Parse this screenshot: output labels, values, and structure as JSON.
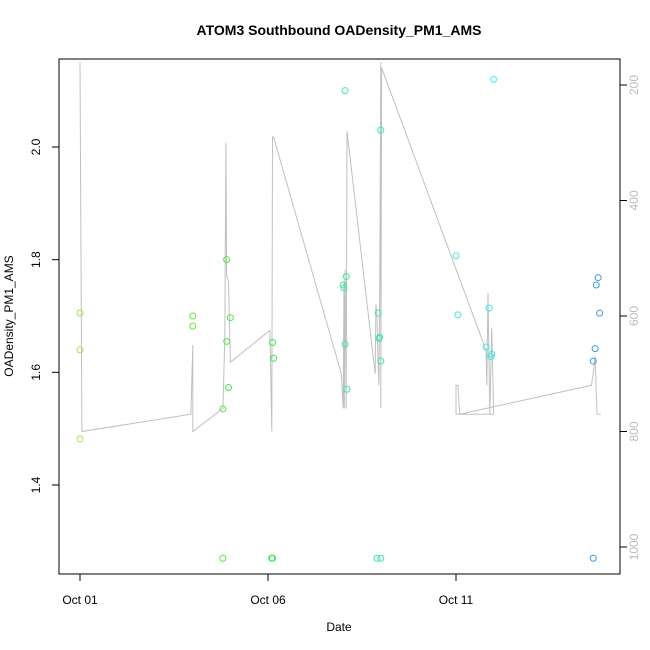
{
  "chart_data": {
    "type": "scatter",
    "title": "ATOM3 Southbound OADensity_PM1_AMS",
    "xlabel": "Date",
    "ylabel": "OADensity_PM1_AMS",
    "x_ticks": [
      {
        "label": "Oct 01",
        "day": 1
      },
      {
        "label": "Oct 06",
        "day": 6
      },
      {
        "label": "Oct 11",
        "day": 11
      }
    ],
    "xlim": [
      0,
      15.4
    ],
    "ylim": [
      1.2,
      2.25
    ],
    "y_ticks": [
      "1.4",
      "1.6",
      "1.8",
      "2.0"
    ],
    "y2_ticks": [
      "200",
      "400",
      "600",
      "800",
      "1000"
    ],
    "y2lim": [
      1060,
      170
    ],
    "points": [
      {
        "x": 1.0,
        "y": 1.705,
        "color": "#9be83a"
      },
      {
        "x": 1.0,
        "y": 1.64,
        "color": "#9be83a"
      },
      {
        "x": 1.0,
        "y": 1.482,
        "color": "#9be83a"
      },
      {
        "x": 4.0,
        "y": 1.7,
        "color": "#6ae63c"
      },
      {
        "x": 4.0,
        "y": 1.682,
        "color": "#6ae63c"
      },
      {
        "x": 4.8,
        "y": 1.27,
        "color": "#55e640"
      },
      {
        "x": 4.8,
        "y": 1.535,
        "color": "#55e640"
      },
      {
        "x": 4.9,
        "y": 1.8,
        "color": "#4be848"
      },
      {
        "x": 4.9,
        "y": 1.655,
        "color": "#4be848"
      },
      {
        "x": 4.95,
        "y": 1.573,
        "color": "#4be848"
      },
      {
        "x": 5.0,
        "y": 1.697,
        "color": "#4be848"
      },
      {
        "x": 6.1,
        "y": 1.27,
        "color": "#3ee655"
      },
      {
        "x": 6.12,
        "y": 1.27,
        "color": "#3ee655"
      },
      {
        "x": 6.12,
        "y": 1.653,
        "color": "#3ee655"
      },
      {
        "x": 6.15,
        "y": 1.625,
        "color": "#3ee655"
      },
      {
        "x": 8.0,
        "y": 1.755,
        "color": "#3ee89e"
      },
      {
        "x": 8.02,
        "y": 1.75,
        "color": "#3ee89e"
      },
      {
        "x": 8.05,
        "y": 1.65,
        "color": "#3ee89e"
      },
      {
        "x": 8.08,
        "y": 1.77,
        "color": "#3ee89e"
      },
      {
        "x": 8.1,
        "y": 1.57,
        "color": "#3ee89e"
      },
      {
        "x": 8.05,
        "y": 2.1,
        "color": "#3ee8b0"
      },
      {
        "x": 8.9,
        "y": 1.27,
        "color": "#3ee8a8"
      },
      {
        "x": 9.0,
        "y": 1.27,
        "color": "#3ee8a8"
      },
      {
        "x": 8.93,
        "y": 1.705,
        "color": "#3ee8a8"
      },
      {
        "x": 8.95,
        "y": 1.66,
        "color": "#3ee8a8"
      },
      {
        "x": 8.97,
        "y": 1.662,
        "color": "#3ee8a8"
      },
      {
        "x": 9.0,
        "y": 1.62,
        "color": "#3ee8a8"
      },
      {
        "x": 9.0,
        "y": 2.03,
        "color": "#3ee8b8"
      },
      {
        "x": 11.0,
        "y": 1.807,
        "color": "#3ee8d8"
      },
      {
        "x": 11.05,
        "y": 1.702,
        "color": "#3ee8d8"
      },
      {
        "x": 11.8,
        "y": 1.645,
        "color": "#3ee8e0"
      },
      {
        "x": 11.88,
        "y": 1.714,
        "color": "#3ee8e0"
      },
      {
        "x": 11.93,
        "y": 1.628,
        "color": "#3ee8e0"
      },
      {
        "x": 11.95,
        "y": 1.632,
        "color": "#3ee8e0"
      },
      {
        "x": 12.0,
        "y": 2.12,
        "color": "#3ef0ee"
      },
      {
        "x": 14.65,
        "y": 1.27,
        "color": "#3b9be0"
      },
      {
        "x": 14.65,
        "y": 1.62,
        "color": "#3b9be0"
      },
      {
        "x": 14.7,
        "y": 1.642,
        "color": "#3b9be0"
      },
      {
        "x": 14.73,
        "y": 1.755,
        "color": "#3b9be0"
      },
      {
        "x": 14.78,
        "y": 1.768,
        "color": "#3b9be0"
      },
      {
        "x": 14.82,
        "y": 1.705,
        "color": "#3b9be0"
      }
    ],
    "altitude_line": {
      "color": "#c0c0c0",
      "points": [
        [
          1.0,
          160
        ],
        [
          1.0,
          160
        ],
        [
          1.05,
          800
        ],
        [
          3.95,
          770
        ],
        [
          4.0,
          650
        ],
        [
          4.0,
          650
        ],
        [
          4.0,
          800
        ],
        [
          4.8,
          760
        ],
        [
          4.85,
          640
        ],
        [
          4.88,
          300
        ],
        [
          4.9,
          530
        ],
        [
          4.95,
          540
        ],
        [
          5.0,
          680
        ],
        [
          6.05,
          625
        ],
        [
          6.1,
          800
        ],
        [
          6.12,
          290
        ],
        [
          6.15,
          290
        ],
        [
          7.95,
          700
        ],
        [
          8.0,
          760
        ],
        [
          8.02,
          540
        ],
        [
          8.03,
          760
        ],
        [
          8.05,
          520
        ],
        [
          8.08,
          760
        ],
        [
          8.1,
          280
        ],
        [
          8.85,
          700
        ],
        [
          8.87,
          580
        ],
        [
          8.9,
          600
        ],
        [
          8.93,
          690
        ],
        [
          8.95,
          720
        ],
        [
          8.97,
          560
        ],
        [
          9.0,
          160
        ],
        [
          9.0,
          760
        ],
        [
          9.02,
          170
        ],
        [
          11.8,
          660
        ],
        [
          11.82,
          720
        ],
        [
          11.85,
          560
        ],
        [
          11.9,
          770
        ],
        [
          11.95,
          620
        ],
        [
          12.0,
          770
        ],
        [
          11.0,
          770
        ],
        [
          11.0,
          720
        ],
        [
          11.05,
          720
        ],
        [
          11.1,
          770
        ],
        [
          14.6,
          720
        ],
        [
          14.65,
          700
        ],
        [
          14.7,
          670
        ],
        [
          14.75,
          770
        ],
        [
          14.85,
          770
        ]
      ]
    }
  }
}
